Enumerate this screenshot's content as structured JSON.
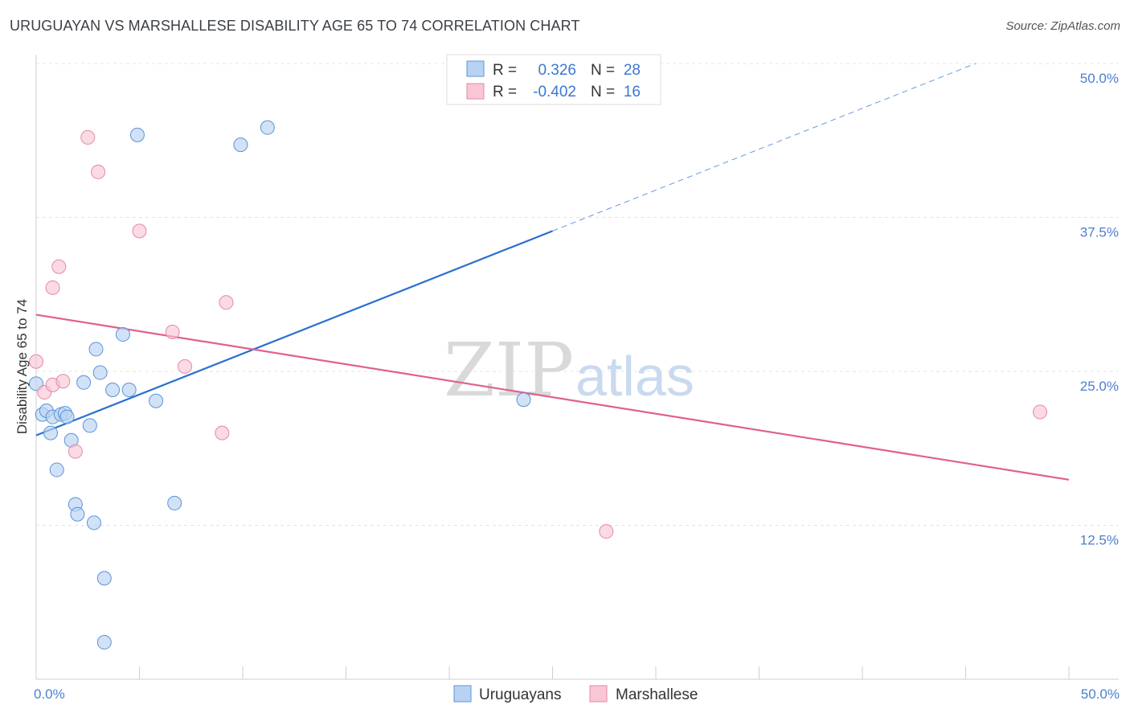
{
  "header": {
    "title": "URUGUAYAN VS MARSHALLESE DISABILITY AGE 65 TO 74 CORRELATION CHART",
    "source": "Source: ZipAtlas.com"
  },
  "colors": {
    "blue_fill": "#b8d3f2",
    "blue_stroke": "#5b93d8",
    "blue_line": "#2a6fcf",
    "pink_fill": "#f8c6d4",
    "pink_stroke": "#e48aa6",
    "pink_line": "#e0608e",
    "grid": "#e4e4e4",
    "axis": "#cfcfcf"
  },
  "watermark": {
    "zip": "ZIP",
    "atlas": "atlas"
  },
  "stats": {
    "uruguayans": {
      "r_label": "R =",
      "r_value": "0.326",
      "n_label": "N =",
      "n_value": "28"
    },
    "marshallese": {
      "r_label": "R =",
      "r_value": "-0.402",
      "n_label": "N =",
      "n_value": "16"
    }
  },
  "chart_data": {
    "type": "scatter",
    "title": "URUGUAYAN VS MARSHALLESE DISABILITY AGE 65 TO 74 CORRELATION CHART",
    "xlabel": "",
    "ylabel": "Disability Age 65 to 74",
    "xlim": [
      0,
      50
    ],
    "ylim": [
      0,
      50
    ],
    "x_tick_labels": [
      "0.0%",
      "50.0%"
    ],
    "y_ticks": [
      12.5,
      25.0,
      37.5,
      50.0
    ],
    "y_tick_labels": [
      "12.5%",
      "25.0%",
      "37.5%",
      "50.0%"
    ],
    "grid": true,
    "legend": [
      "Uruguayans",
      "Marshallese"
    ],
    "series": [
      {
        "name": "Uruguayans",
        "points": [
          [
            0.0,
            24.0
          ],
          [
            0.3,
            21.5
          ],
          [
            0.5,
            21.8
          ],
          [
            0.7,
            20.0
          ],
          [
            0.8,
            21.3
          ],
          [
            1.0,
            17.0
          ],
          [
            1.2,
            21.5
          ],
          [
            1.4,
            21.6
          ],
          [
            1.5,
            21.3
          ],
          [
            1.7,
            19.4
          ],
          [
            1.9,
            14.2
          ],
          [
            2.0,
            13.4
          ],
          [
            2.3,
            24.1
          ],
          [
            2.6,
            20.6
          ],
          [
            2.8,
            12.7
          ],
          [
            2.9,
            26.8
          ],
          [
            3.1,
            24.9
          ],
          [
            3.3,
            8.2
          ],
          [
            3.3,
            3.0
          ],
          [
            3.7,
            23.5
          ],
          [
            4.2,
            28.0
          ],
          [
            4.5,
            23.5
          ],
          [
            4.9,
            44.2
          ],
          [
            5.8,
            22.6
          ],
          [
            6.7,
            14.3
          ],
          [
            9.9,
            43.4
          ],
          [
            11.2,
            44.8
          ],
          [
            23.6,
            22.7
          ]
        ],
        "trend": {
          "x": [
            0,
            25
          ],
          "y": [
            19.8,
            36.4
          ],
          "dashed_to": [
            50,
            53.0
          ]
        }
      },
      {
        "name": "Marshallese",
        "points": [
          [
            0.0,
            25.8
          ],
          [
            0.4,
            23.3
          ],
          [
            0.8,
            23.9
          ],
          [
            0.8,
            31.8
          ],
          [
            1.1,
            33.5
          ],
          [
            1.3,
            24.2
          ],
          [
            1.9,
            18.5
          ],
          [
            2.5,
            44.0
          ],
          [
            3.0,
            41.2
          ],
          [
            5.0,
            36.4
          ],
          [
            6.6,
            28.2
          ],
          [
            7.2,
            25.4
          ],
          [
            9.0,
            20.0
          ],
          [
            9.2,
            30.6
          ],
          [
            27.6,
            12.0
          ],
          [
            48.6,
            21.7
          ]
        ],
        "trend": {
          "x": [
            0,
            50
          ],
          "y": [
            29.6,
            16.2
          ]
        }
      }
    ]
  }
}
